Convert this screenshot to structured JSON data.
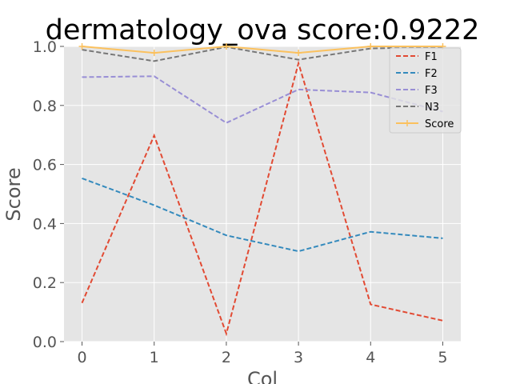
{
  "chart_data": {
    "type": "line",
    "title": "dermatology_ova score:0.9222",
    "xlabel": "Col",
    "ylabel": "Score",
    "x": [
      0,
      1,
      2,
      3,
      4,
      5
    ],
    "xlim": [
      -0.25,
      5.25
    ],
    "ylim": [
      0.0,
      1.0
    ],
    "xticks": [
      "0",
      "1",
      "2",
      "3",
      "4",
      "5"
    ],
    "yticks": [
      "0.0",
      "0.2",
      "0.4",
      "0.6",
      "0.8",
      "1.0"
    ],
    "grid": true,
    "legend_position": "upper right",
    "series": [
      {
        "name": "F1",
        "color": "#e24a33",
        "style": "dashed",
        "values": [
          0.131,
          0.698,
          0.027,
          0.943,
          0.126,
          0.071
        ]
      },
      {
        "name": "F2",
        "color": "#348abd",
        "style": "dashed",
        "values": [
          0.553,
          0.462,
          0.36,
          0.306,
          0.372,
          0.35
        ]
      },
      {
        "name": "F3",
        "color": "#988ed5",
        "style": "dashed",
        "values": [
          0.896,
          0.899,
          0.741,
          0.854,
          0.844,
          0.779
        ]
      },
      {
        "name": "N3",
        "color": "#777777",
        "style": "dashed",
        "values": [
          0.989,
          0.95,
          0.998,
          0.955,
          0.993,
          0.998
        ]
      },
      {
        "name": "Score",
        "color": "#fbc15e",
        "style": "solid-marker",
        "values": [
          1.0,
          0.978,
          1.0,
          0.978,
          1.0,
          1.0
        ]
      }
    ]
  }
}
